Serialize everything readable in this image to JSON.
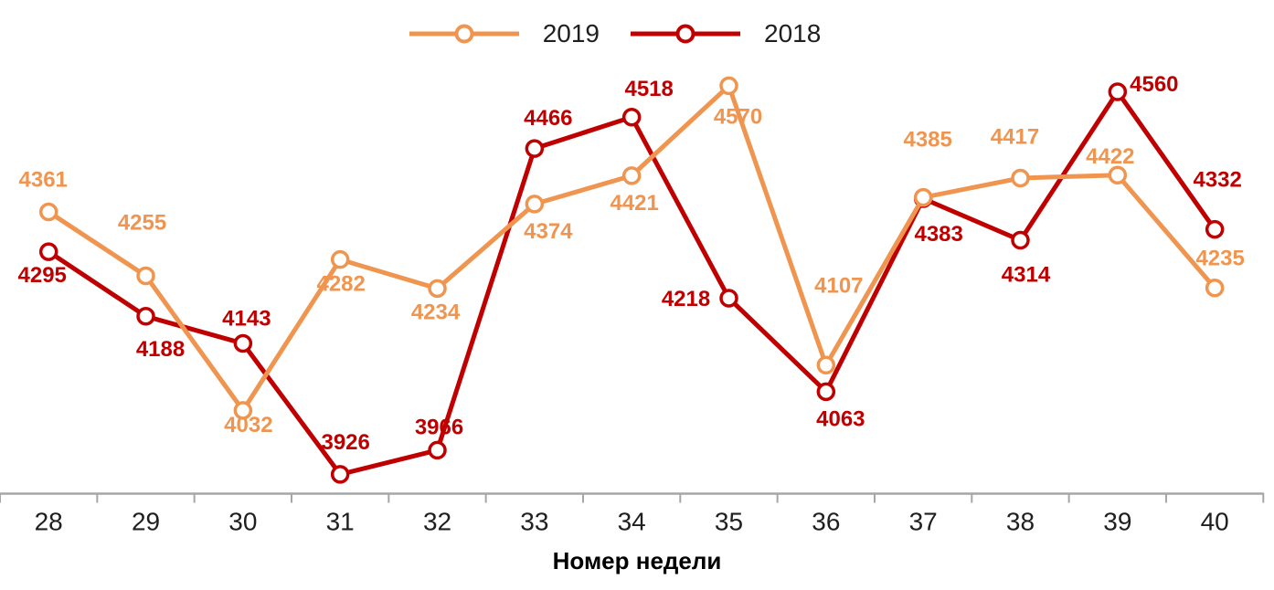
{
  "chart_data": {
    "type": "line",
    "title": "",
    "xlabel": "Номер недели",
    "ylabel": "",
    "categories": [
      "28",
      "29",
      "30",
      "31",
      "32",
      "33",
      "34",
      "35",
      "36",
      "37",
      "38",
      "39",
      "40"
    ],
    "series": [
      {
        "name": "2019",
        "color": "#F0954F",
        "values": [
          4361,
          4255,
          4032,
          4282,
          4234,
          4374,
          4421,
          4570,
          4107,
          4385,
          4417,
          4422,
          4235
        ],
        "label_offsets": [
          [
            -6,
            -35
          ],
          [
            -4,
            -58
          ],
          [
            6,
            16
          ],
          [
            1,
            27
          ],
          [
            -2,
            26
          ],
          [
            15,
            30
          ],
          [
            3,
            30
          ],
          [
            10,
            34
          ],
          [
            14,
            -87
          ],
          [
            5,
            -63
          ],
          [
            -6,
            -45
          ],
          [
            -8,
            -20
          ],
          [
            6,
            -32
          ]
        ]
      },
      {
        "name": "2018",
        "color": "#C00000",
        "values": [
          4295,
          4188,
          4143,
          3926,
          3966,
          4466,
          4518,
          4218,
          4063,
          4383,
          4314,
          4560,
          4332
        ],
        "label_offsets": [
          [
            -7,
            26
          ],
          [
            16,
            36
          ],
          [
            4,
            -27
          ],
          [
            6,
            -35
          ],
          [
            2,
            -25
          ],
          [
            15,
            -33
          ],
          [
            19,
            -31
          ],
          [
            -47,
            1
          ],
          [
            16,
            30
          ],
          [
            17,
            39
          ],
          [
            6,
            38
          ],
          [
            40,
            -8
          ],
          [
            3,
            -54
          ]
        ]
      }
    ],
    "legend_position": "top-center",
    "grid": false,
    "data_labels": true,
    "y_axis_visible": false,
    "ylim": [
      3880,
      4640
    ],
    "axis_color": "#A6A6A6",
    "tick_label_color": "#1F1F1F"
  }
}
